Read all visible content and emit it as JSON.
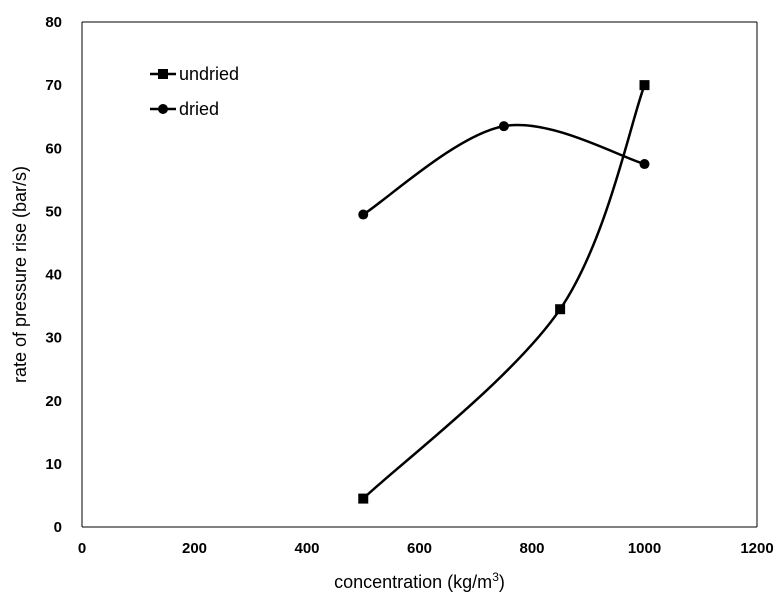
{
  "chart_data": {
    "type": "line",
    "xlabel": "concentration (kg/m³)",
    "ylabel": "rate of pressure rise (bar/s)",
    "xlim": [
      0,
      1200
    ],
    "ylim": [
      0,
      80
    ],
    "xticks": [
      0,
      200,
      400,
      600,
      800,
      1000,
      1200
    ],
    "yticks": [
      0,
      10,
      20,
      30,
      40,
      50,
      60,
      70,
      80
    ],
    "grid": false,
    "legend_position": "top-left",
    "smooth": true,
    "series": [
      {
        "name": "undried",
        "marker": "square",
        "x": [
          500,
          850,
          1000
        ],
        "y": [
          4.5,
          34.5,
          70
        ]
      },
      {
        "name": "dried",
        "marker": "circle",
        "x": [
          500,
          750,
          1000
        ],
        "y": [
          49.5,
          63.5,
          57.5
        ]
      }
    ],
    "colors": {
      "line": "#000000",
      "axis": "#000000"
    }
  }
}
